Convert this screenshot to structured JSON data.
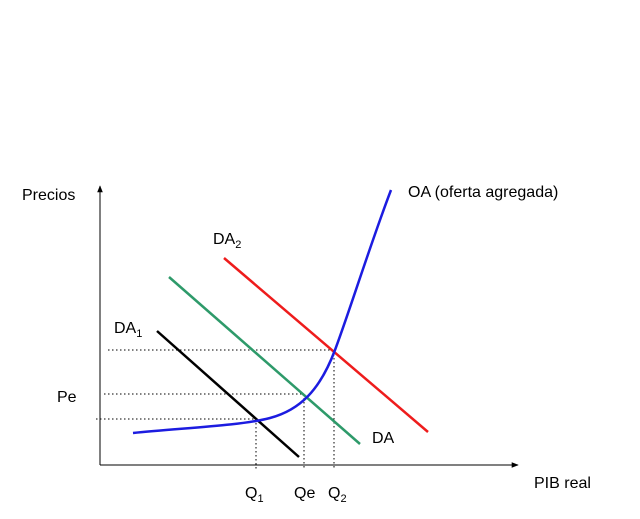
{
  "axes": {
    "y_label": "Precios",
    "x_label": "PIB real",
    "price_label": "Pe"
  },
  "curves": {
    "oa": {
      "label": "OA (oferta agregada)",
      "color": "#1c1ce0"
    },
    "da": {
      "label": "DA",
      "color": "#2e9a6a"
    },
    "da1": {
      "label": "DA",
      "subscript": "1",
      "color": "#000000"
    },
    "da2": {
      "label": "DA",
      "subscript": "2",
      "color": "#ee1c1c"
    }
  },
  "quantities": {
    "q1": {
      "label": "Q",
      "subscript": "1"
    },
    "qe": {
      "label": "Qe"
    },
    "q2": {
      "label": "Q",
      "subscript": "2"
    }
  }
}
